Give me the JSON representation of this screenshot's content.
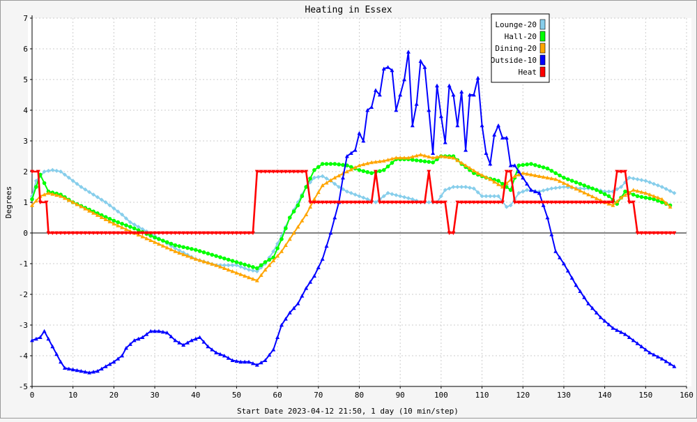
{
  "chart_data": {
    "type": "line",
    "title": "Heating in Essex",
    "xlabel": "Start Date 2023-04-12 21:50, 1 day (10 min/step)",
    "ylabel": "Degrees",
    "xlim": [
      0,
      160
    ],
    "ylim": [
      -5,
      7
    ],
    "xticks": [
      0,
      10,
      20,
      30,
      40,
      50,
      60,
      70,
      80,
      90,
      100,
      110,
      120,
      130,
      140,
      150,
      160
    ],
    "yticks": [
      -5,
      -4,
      -3,
      -2,
      -1,
      0,
      1,
      2,
      3,
      4,
      5,
      6,
      7
    ],
    "grid": true,
    "legend_position": "top-right",
    "series": [
      {
        "name": "Lounge-20",
        "color": "#87ceeb",
        "marker": "diamond",
        "points": [
          [
            0,
            1.2
          ],
          [
            1,
            1.7
          ],
          [
            3,
            2.0
          ],
          [
            5,
            2.05
          ],
          [
            7,
            2.0
          ],
          [
            10,
            1.7
          ],
          [
            12,
            1.5
          ],
          [
            15,
            1.25
          ],
          [
            18,
            1.0
          ],
          [
            20,
            0.8
          ],
          [
            22,
            0.6
          ],
          [
            24,
            0.35
          ],
          [
            26,
            0.2
          ],
          [
            28,
            0.05
          ],
          [
            30,
            -0.1
          ],
          [
            35,
            -0.5
          ],
          [
            40,
            -0.85
          ],
          [
            45,
            -1.05
          ],
          [
            50,
            -1.05
          ],
          [
            53,
            -1.2
          ],
          [
            55,
            -1.25
          ],
          [
            57,
            -1.0
          ],
          [
            59,
            -0.6
          ],
          [
            61,
            -0.1
          ],
          [
            63,
            0.5
          ],
          [
            65,
            1.0
          ],
          [
            67,
            1.5
          ],
          [
            69,
            1.8
          ],
          [
            71,
            1.85
          ],
          [
            73,
            1.7
          ],
          [
            75,
            1.5
          ],
          [
            77,
            1.35
          ],
          [
            80,
            1.2
          ],
          [
            82,
            1.1
          ],
          [
            84,
            1.0
          ],
          [
            85,
            1.1
          ],
          [
            87,
            1.3
          ],
          [
            90,
            1.2
          ],
          [
            93,
            1.1
          ],
          [
            95,
            1.0
          ],
          [
            97,
            1.0
          ],
          [
            99,
            1.0
          ],
          [
            101,
            1.4
          ],
          [
            103,
            1.5
          ],
          [
            106,
            1.5
          ],
          [
            108,
            1.45
          ],
          [
            110,
            1.2
          ],
          [
            112,
            1.2
          ],
          [
            114,
            1.2
          ],
          [
            116,
            0.85
          ],
          [
            117,
            0.9
          ],
          [
            119,
            1.3
          ],
          [
            121,
            1.4
          ],
          [
            124,
            1.35
          ],
          [
            127,
            1.45
          ],
          [
            130,
            1.5
          ],
          [
            134,
            1.45
          ],
          [
            137,
            1.45
          ],
          [
            140,
            1.35
          ],
          [
            142,
            1.35
          ],
          [
            144,
            1.5
          ],
          [
            146,
            1.8
          ],
          [
            150,
            1.7
          ],
          [
            154,
            1.5
          ],
          [
            157,
            1.3
          ]
        ]
      },
      {
        "name": "Hall-20",
        "color": "#00ff00",
        "marker": "circle",
        "points": [
          [
            0,
            1.1
          ],
          [
            2,
            1.9
          ],
          [
            4,
            1.35
          ],
          [
            7,
            1.25
          ],
          [
            10,
            1.0
          ],
          [
            15,
            0.7
          ],
          [
            20,
            0.4
          ],
          [
            25,
            0.15
          ],
          [
            30,
            -0.15
          ],
          [
            35,
            -0.4
          ],
          [
            40,
            -0.55
          ],
          [
            45,
            -0.75
          ],
          [
            50,
            -0.95
          ],
          [
            55,
            -1.15
          ],
          [
            57,
            -0.95
          ],
          [
            59,
            -0.8
          ],
          [
            61,
            -0.2
          ],
          [
            63,
            0.5
          ],
          [
            65,
            0.9
          ],
          [
            67,
            1.5
          ],
          [
            69,
            2.05
          ],
          [
            71,
            2.25
          ],
          [
            74,
            2.25
          ],
          [
            77,
            2.2
          ],
          [
            80,
            2.05
          ],
          [
            83,
            1.95
          ],
          [
            86,
            2.05
          ],
          [
            89,
            2.4
          ],
          [
            92,
            2.4
          ],
          [
            95,
            2.35
          ],
          [
            98,
            2.3
          ],
          [
            100,
            2.5
          ],
          [
            103,
            2.5
          ],
          [
            105,
            2.25
          ],
          [
            108,
            1.95
          ],
          [
            111,
            1.8
          ],
          [
            114,
            1.7
          ],
          [
            117,
            1.4
          ],
          [
            119,
            2.2
          ],
          [
            122,
            2.25
          ],
          [
            126,
            2.1
          ],
          [
            130,
            1.8
          ],
          [
            134,
            1.6
          ],
          [
            138,
            1.4
          ],
          [
            141,
            1.2
          ],
          [
            143,
            0.95
          ],
          [
            145,
            1.35
          ],
          [
            148,
            1.2
          ],
          [
            152,
            1.1
          ],
          [
            156,
            0.9
          ]
        ]
      },
      {
        "name": "Dining-20",
        "color": "#ffa500",
        "marker": "triangle",
        "points": [
          [
            0,
            0.9
          ],
          [
            2,
            1.2
          ],
          [
            4,
            1.3
          ],
          [
            7,
            1.2
          ],
          [
            10,
            1.0
          ],
          [
            15,
            0.65
          ],
          [
            20,
            0.3
          ],
          [
            25,
            0.0
          ],
          [
            30,
            -0.3
          ],
          [
            35,
            -0.6
          ],
          [
            40,
            -0.85
          ],
          [
            45,
            -1.05
          ],
          [
            50,
            -1.3
          ],
          [
            55,
            -1.55
          ],
          [
            57,
            -1.2
          ],
          [
            59,
            -0.9
          ],
          [
            61,
            -0.6
          ],
          [
            63,
            -0.2
          ],
          [
            65,
            0.2
          ],
          [
            67,
            0.6
          ],
          [
            69,
            1.1
          ],
          [
            71,
            1.55
          ],
          [
            74,
            1.8
          ],
          [
            77,
            2.0
          ],
          [
            80,
            2.2
          ],
          [
            83,
            2.3
          ],
          [
            86,
            2.35
          ],
          [
            89,
            2.45
          ],
          [
            92,
            2.45
          ],
          [
            95,
            2.55
          ],
          [
            98,
            2.45
          ],
          [
            100,
            2.5
          ],
          [
            103,
            2.45
          ],
          [
            106,
            2.2
          ],
          [
            109,
            1.95
          ],
          [
            112,
            1.75
          ],
          [
            115,
            1.5
          ],
          [
            118,
            1.85
          ],
          [
            120,
            1.95
          ],
          [
            124,
            1.85
          ],
          [
            128,
            1.75
          ],
          [
            132,
            1.5
          ],
          [
            136,
            1.25
          ],
          [
            140,
            1.0
          ],
          [
            142,
            0.9
          ],
          [
            144,
            1.15
          ],
          [
            147,
            1.4
          ],
          [
            150,
            1.3
          ],
          [
            154,
            1.1
          ],
          [
            156,
            0.85
          ]
        ]
      },
      {
        "name": "Outside-10",
        "color": "#0000ff",
        "marker": "triangle",
        "points": [
          [
            0,
            -3.5
          ],
          [
            2,
            -3.4
          ],
          [
            3,
            -3.2
          ],
          [
            5,
            -3.7
          ],
          [
            7,
            -4.2
          ],
          [
            8,
            -4.4
          ],
          [
            10,
            -4.45
          ],
          [
            12,
            -4.5
          ],
          [
            14,
            -4.55
          ],
          [
            16,
            -4.5
          ],
          [
            18,
            -4.35
          ],
          [
            20,
            -4.2
          ],
          [
            22,
            -4.0
          ],
          [
            23,
            -3.75
          ],
          [
            25,
            -3.5
          ],
          [
            27,
            -3.4
          ],
          [
            29,
            -3.2
          ],
          [
            31,
            -3.2
          ],
          [
            33,
            -3.25
          ],
          [
            35,
            -3.5
          ],
          [
            37,
            -3.65
          ],
          [
            39,
            -3.5
          ],
          [
            41,
            -3.4
          ],
          [
            43,
            -3.7
          ],
          [
            45,
            -3.9
          ],
          [
            47,
            -4.0
          ],
          [
            49,
            -4.15
          ],
          [
            51,
            -4.2
          ],
          [
            53,
            -4.2
          ],
          [
            55,
            -4.3
          ],
          [
            57,
            -4.15
          ],
          [
            59,
            -3.8
          ],
          [
            61,
            -3.0
          ],
          [
            63,
            -2.6
          ],
          [
            65,
            -2.3
          ],
          [
            67,
            -1.8
          ],
          [
            69,
            -1.4
          ],
          [
            71,
            -0.85
          ],
          [
            73,
            0.0
          ],
          [
            74,
            0.5
          ],
          [
            75,
            1.0
          ],
          [
            76,
            1.8
          ],
          [
            77,
            2.5
          ],
          [
            78,
            2.6
          ],
          [
            79,
            2.7
          ],
          [
            80,
            3.25
          ],
          [
            81,
            3.0
          ],
          [
            82,
            4.0
          ],
          [
            83,
            4.1
          ],
          [
            84,
            4.65
          ],
          [
            85,
            4.5
          ],
          [
            86,
            5.35
          ],
          [
            87,
            5.4
          ],
          [
            88,
            5.3
          ],
          [
            89,
            4.0
          ],
          [
            90,
            4.5
          ],
          [
            91,
            5.0
          ],
          [
            92,
            5.9
          ],
          [
            93,
            3.5
          ],
          [
            94,
            4.2
          ],
          [
            95,
            5.6
          ],
          [
            96,
            5.4
          ],
          [
            97,
            4.0
          ],
          [
            98,
            2.6
          ],
          [
            99,
            4.8
          ],
          [
            100,
            3.8
          ],
          [
            101,
            2.95
          ],
          [
            102,
            4.8
          ],
          [
            103,
            4.5
          ],
          [
            104,
            3.5
          ],
          [
            105,
            4.6
          ],
          [
            106,
            2.7
          ],
          [
            107,
            4.5
          ],
          [
            108,
            4.5
          ],
          [
            109,
            5.05
          ],
          [
            110,
            3.5
          ],
          [
            111,
            2.6
          ],
          [
            112,
            2.25
          ],
          [
            113,
            3.2
          ],
          [
            114,
            3.5
          ],
          [
            115,
            3.1
          ],
          [
            116,
            3.1
          ],
          [
            117,
            2.2
          ],
          [
            118,
            2.2
          ],
          [
            120,
            1.8
          ],
          [
            122,
            1.4
          ],
          [
            124,
            1.3
          ],
          [
            126,
            0.5
          ],
          [
            128,
            -0.6
          ],
          [
            130,
            -1.0
          ],
          [
            133,
            -1.7
          ],
          [
            136,
            -2.3
          ],
          [
            139,
            -2.75
          ],
          [
            142,
            -3.1
          ],
          [
            145,
            -3.3
          ],
          [
            148,
            -3.6
          ],
          [
            151,
            -3.9
          ],
          [
            154,
            -4.1
          ],
          [
            157,
            -4.35
          ]
        ]
      },
      {
        "name": "Heat",
        "color": "#ff0000",
        "marker": "triangle-down",
        "points": [
          [
            0,
            2
          ],
          [
            1.5,
            2
          ],
          [
            2,
            1
          ],
          [
            3.5,
            1
          ],
          [
            4,
            0
          ],
          [
            54,
            0
          ],
          [
            55,
            2
          ],
          [
            67,
            2
          ],
          [
            68,
            1
          ],
          [
            83,
            1
          ],
          [
            84,
            2
          ],
          [
            85,
            1
          ],
          [
            96,
            1
          ],
          [
            97,
            2
          ],
          [
            98,
            1
          ],
          [
            101,
            1
          ],
          [
            102,
            0
          ],
          [
            103,
            0
          ],
          [
            104,
            1
          ],
          [
            115,
            1
          ],
          [
            116,
            2
          ],
          [
            117,
            2
          ],
          [
            118,
            1
          ],
          [
            142,
            1
          ],
          [
            143,
            2
          ],
          [
            145,
            2
          ],
          [
            146,
            1
          ],
          [
            147,
            1
          ],
          [
            148,
            0
          ],
          [
            157,
            0
          ]
        ]
      }
    ]
  }
}
